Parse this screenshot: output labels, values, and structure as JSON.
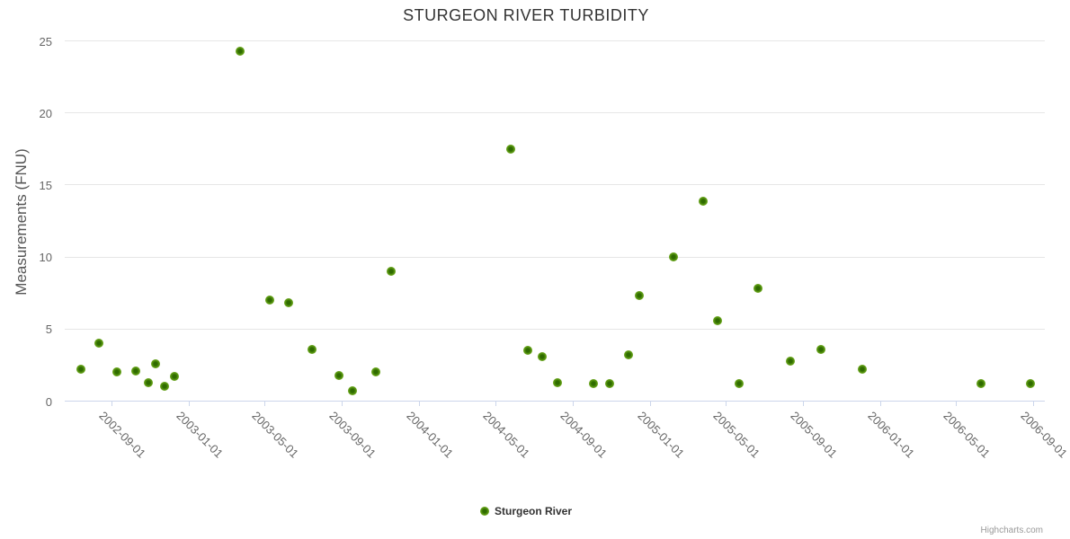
{
  "chart": {
    "title": "STURGEON RIVER TURBIDITY",
    "y_axis_title": "Measurements (FNU)",
    "series_name": "Sturgeon River",
    "credit": "Highcharts.com"
  },
  "colors": {
    "title": "#333333",
    "axis_title": "#555555",
    "label": "#666666",
    "grid_line": "#e6e6e6",
    "axis_line": "#ccd6eb",
    "marker": "#7cb32e",
    "marker_mid": "#55930e",
    "marker_core": "#2f6b00",
    "marker_edge": "#8bc53f",
    "legend_text": "#333333",
    "credit": "#999999",
    "background": "#ffffff"
  },
  "chart_data": {
    "type": "scatter",
    "title": "STURGEON RIVER TURBIDITY",
    "xlabel": "",
    "ylabel": "Measurements (FNU)",
    "ylim": [
      0,
      25
    ],
    "yticks": [
      0,
      5,
      10,
      15,
      20,
      25
    ],
    "xticks": [
      "2002-09-01",
      "2003-01-01",
      "2003-05-01",
      "2003-09-01",
      "2004-01-01",
      "2004-05-01",
      "2004-09-01",
      "2005-01-01",
      "2005-05-01",
      "2005-09-01",
      "2006-01-01",
      "2006-05-01",
      "2006-09-01"
    ],
    "grid": true,
    "legend_position": "bottom-center",
    "series": [
      {
        "name": "Sturgeon River",
        "points": [
          {
            "date": "2002-07-14",
            "value": 2.2
          },
          {
            "date": "2002-08-12",
            "value": 4.0
          },
          {
            "date": "2002-09-09",
            "value": 2.0
          },
          {
            "date": "2002-10-09",
            "value": 2.1
          },
          {
            "date": "2002-10-29",
            "value": 1.3
          },
          {
            "date": "2002-11-10",
            "value": 2.6
          },
          {
            "date": "2002-11-24",
            "value": 1.0
          },
          {
            "date": "2002-12-09",
            "value": 1.7
          },
          {
            "date": "2003-03-23",
            "value": 24.3
          },
          {
            "date": "2003-05-10",
            "value": 7.0
          },
          {
            "date": "2003-06-08",
            "value": 6.8
          },
          {
            "date": "2003-07-15",
            "value": 3.6
          },
          {
            "date": "2003-08-27",
            "value": 1.8
          },
          {
            "date": "2003-09-18",
            "value": 0.7
          },
          {
            "date": "2003-10-25",
            "value": 2.0
          },
          {
            "date": "2003-11-18",
            "value": 9.0
          },
          {
            "date": "2004-05-25",
            "value": 17.5
          },
          {
            "date": "2004-06-22",
            "value": 3.5
          },
          {
            "date": "2004-07-15",
            "value": 3.1
          },
          {
            "date": "2004-08-08",
            "value": 1.3
          },
          {
            "date": "2004-10-04",
            "value": 1.2
          },
          {
            "date": "2004-10-29",
            "value": 1.2
          },
          {
            "date": "2004-11-28",
            "value": 3.2
          },
          {
            "date": "2004-12-15",
            "value": 7.3
          },
          {
            "date": "2005-02-07",
            "value": 10.0
          },
          {
            "date": "2005-03-27",
            "value": 13.9
          },
          {
            "date": "2005-04-19",
            "value": 5.6
          },
          {
            "date": "2005-05-23",
            "value": 1.2
          },
          {
            "date": "2005-06-21",
            "value": 7.8
          },
          {
            "date": "2005-08-12",
            "value": 2.8
          },
          {
            "date": "2005-09-30",
            "value": 3.6
          },
          {
            "date": "2005-12-04",
            "value": 2.2
          },
          {
            "date": "2006-06-10",
            "value": 1.2
          },
          {
            "date": "2006-08-28",
            "value": 1.2
          }
        ]
      }
    ]
  }
}
